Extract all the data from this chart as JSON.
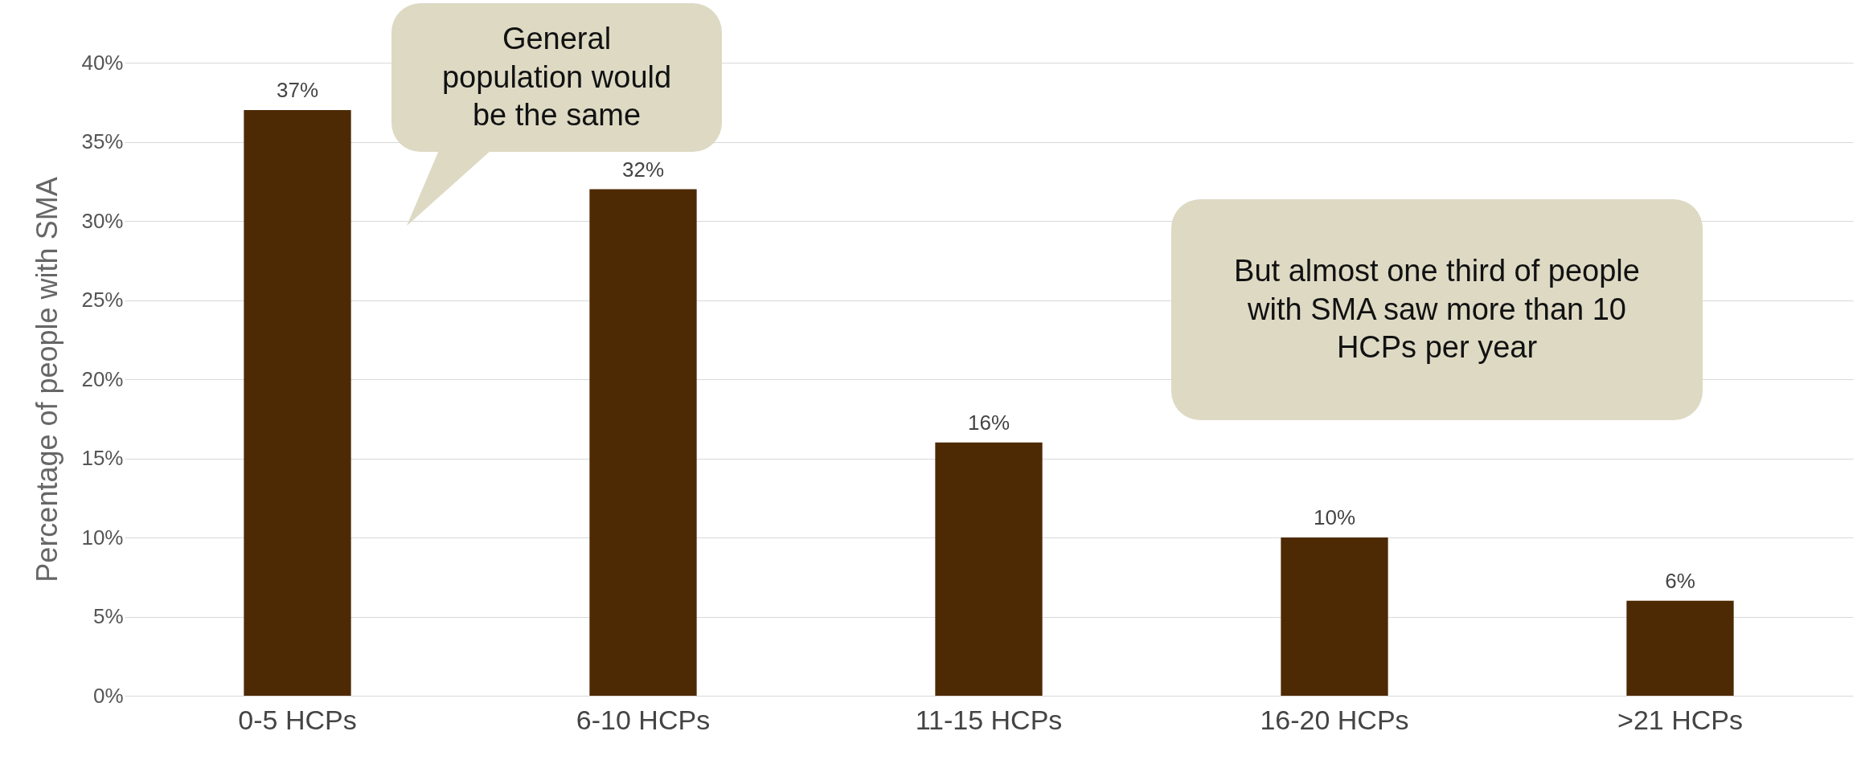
{
  "chart_data": {
    "type": "bar",
    "ylabel": "Percentage of people with SMA",
    "categories": [
      "0-5 HCPs",
      "6-10 HCPs",
      "11-15 HCPs",
      "16-20 HCPs",
      ">21 HCPs"
    ],
    "values": [
      37,
      32,
      16,
      10,
      6
    ],
    "value_labels": [
      "37%",
      "32%",
      "16%",
      "10%",
      "6%"
    ],
    "color": "#4e2a04",
    "ylim": [
      0,
      40
    ],
    "yticks": [
      {
        "value": 0,
        "label": "0%"
      },
      {
        "value": 5,
        "label": "5%"
      },
      {
        "value": 10,
        "label": "10%"
      },
      {
        "value": 15,
        "label": "15%"
      },
      {
        "value": 20,
        "label": "20%"
      },
      {
        "value": 25,
        "label": "25%"
      },
      {
        "value": 30,
        "label": "30%"
      },
      {
        "value": 35,
        "label": "35%"
      },
      {
        "value": 40,
        "label": "40%"
      }
    ],
    "grid": "y",
    "annotations": [
      "General population would be the same",
      "But almost one third of people with SMA saw more than 10 HCPs per year"
    ]
  }
}
